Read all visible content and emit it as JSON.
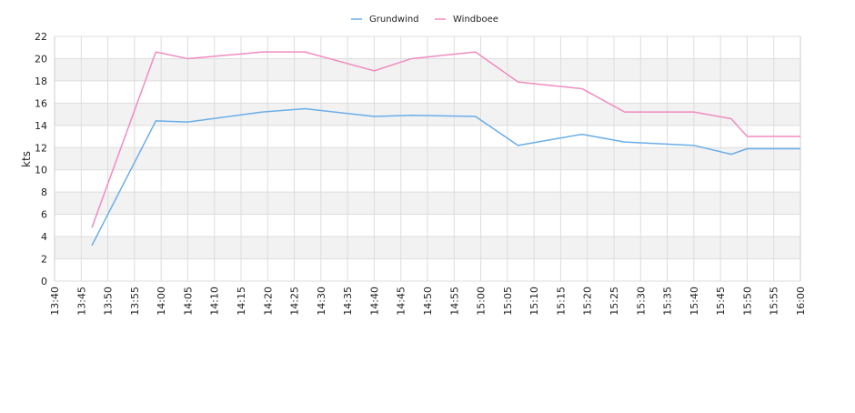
{
  "chart_data": {
    "type": "line",
    "title": "",
    "xlabel": "",
    "ylabel": "kts",
    "ylim": [
      0,
      22
    ],
    "yticks": [
      0,
      2,
      4,
      6,
      8,
      10,
      12,
      14,
      16,
      18,
      20,
      22
    ],
    "xlim": [
      "13:40",
      "16:00"
    ],
    "xticks": [
      "13:40",
      "13:45",
      "13:50",
      "13:55",
      "14:00",
      "14:05",
      "14:10",
      "14:15",
      "14:20",
      "14:25",
      "14:30",
      "14:35",
      "14:40",
      "14:45",
      "14:50",
      "14:55",
      "15:00",
      "15:05",
      "15:10",
      "15:15",
      "15:20",
      "15:25",
      "15:30",
      "15:35",
      "15:40",
      "15:45",
      "15:50",
      "15:55",
      "16:00"
    ],
    "grid": true,
    "legend_position": "top-center",
    "series": [
      {
        "name": "Grundwind",
        "color": "#6aaee8",
        "points": [
          {
            "x": "13:47",
            "y": 3.2
          },
          {
            "x": "13:59",
            "y": 14.4
          },
          {
            "x": "14:05",
            "y": 14.3
          },
          {
            "x": "14:19",
            "y": 15.2
          },
          {
            "x": "14:27",
            "y": 15.5
          },
          {
            "x": "14:40",
            "y": 14.8
          },
          {
            "x": "14:47",
            "y": 14.9
          },
          {
            "x": "14:59",
            "y": 14.8
          },
          {
            "x": "15:07",
            "y": 12.2
          },
          {
            "x": "15:19",
            "y": 13.2
          },
          {
            "x": "15:27",
            "y": 12.5
          },
          {
            "x": "15:40",
            "y": 12.2
          },
          {
            "x": "15:47",
            "y": 11.4
          },
          {
            "x": "15:50",
            "y": 11.9
          },
          {
            "x": "16:00",
            "y": 11.9
          }
        ]
      },
      {
        "name": "Windboee",
        "color": "#f08cc0",
        "points": [
          {
            "x": "13:47",
            "y": 4.8
          },
          {
            "x": "13:59",
            "y": 20.6
          },
          {
            "x": "14:05",
            "y": 20.0
          },
          {
            "x": "14:19",
            "y": 20.6
          },
          {
            "x": "14:27",
            "y": 20.6
          },
          {
            "x": "14:40",
            "y": 18.9
          },
          {
            "x": "14:47",
            "y": 20.0
          },
          {
            "x": "14:59",
            "y": 20.6
          },
          {
            "x": "15:07",
            "y": 17.9
          },
          {
            "x": "15:19",
            "y": 17.3
          },
          {
            "x": "15:27",
            "y": 15.2
          },
          {
            "x": "15:40",
            "y": 15.2
          },
          {
            "x": "15:47",
            "y": 14.6
          },
          {
            "x": "15:50",
            "y": 13.0
          },
          {
            "x": "16:00",
            "y": 13.0
          }
        ]
      }
    ]
  }
}
